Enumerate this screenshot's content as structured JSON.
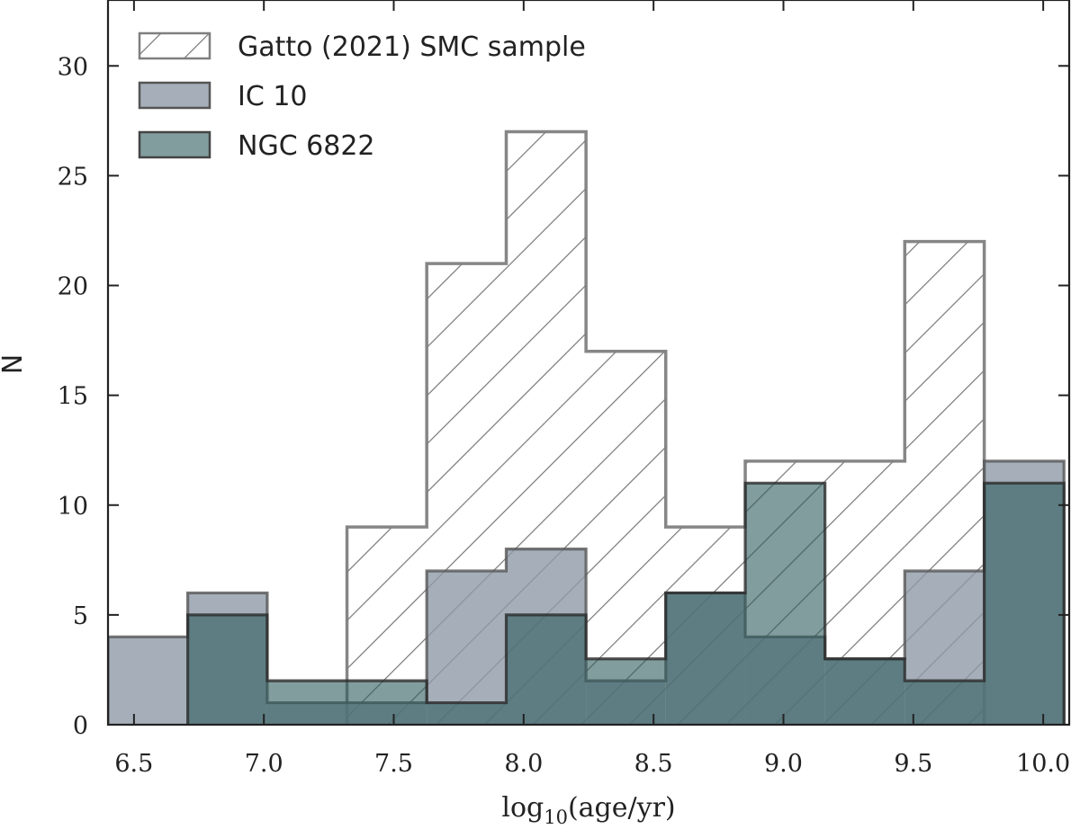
{
  "chart_data": {
    "type": "histogram",
    "xlabel_main": "log",
    "xlabel_sub": "10",
    "xlabel_rest": "(age/yr)",
    "ylabel": "N",
    "xlim": [
      6.4,
      10.1
    ],
    "ylim": [
      0,
      33
    ],
    "xticks": [
      6.5,
      7.0,
      7.5,
      8.0,
      8.5,
      9.0,
      9.5,
      10.0
    ],
    "xtick_labels": [
      "6.5",
      "7.0",
      "7.5",
      "8.0",
      "8.5",
      "9.0",
      "9.5",
      "10.0"
    ],
    "yticks": [
      0,
      5,
      10,
      15,
      20,
      25,
      30
    ],
    "ytick_labels": [
      "0",
      "5",
      "10",
      "15",
      "20",
      "25",
      "30"
    ],
    "bin_edges": [
      6.4,
      6.707,
      7.013,
      7.32,
      7.627,
      7.933,
      8.24,
      8.547,
      8.853,
      9.16,
      9.467,
      9.773,
      10.08
    ],
    "series": [
      {
        "name": "Gatto (2021) SMC sample",
        "style": "hatched",
        "color": "#7f7f7f",
        "values": [
          0,
          0,
          0,
          9,
          21,
          27,
          17,
          9,
          12,
          12,
          22,
          0
        ]
      },
      {
        "name": "IC 10",
        "style": "filled",
        "color": "#8f9aa8",
        "values": [
          4,
          6,
          1,
          1,
          7,
          8,
          2,
          6,
          4,
          3,
          7,
          12
        ]
      },
      {
        "name": "NGC 6822",
        "style": "filled",
        "color": "#2f5c5e",
        "values": [
          0,
          5,
          2,
          2,
          1,
          5,
          3,
          6,
          11,
          3,
          2,
          11
        ]
      }
    ],
    "legend_position": "top-left"
  }
}
